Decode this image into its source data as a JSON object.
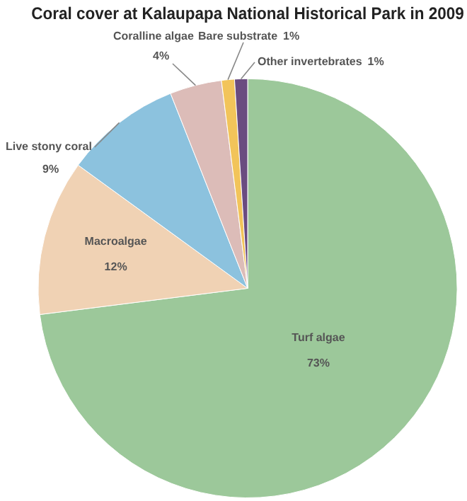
{
  "chart_data": {
    "type": "pie",
    "title": "Coral cover at Kalaupapa National Historical Park in 2009",
    "categories": [
      "Turf algae",
      "Macroalgae",
      "Live stony coral",
      "Coralline algae",
      "Bare substrate",
      "Other invertebrates"
    ],
    "values": [
      73,
      12,
      9,
      4,
      1,
      1
    ],
    "colors": [
      "#9cc89a",
      "#f0d2b4",
      "#8cc2de",
      "#dcbcb8",
      "#f2c45a",
      "#6a4c80"
    ],
    "value_labels": [
      "73%",
      "12%",
      "9%",
      "4%",
      "1%",
      "1%"
    ],
    "legend": false
  }
}
